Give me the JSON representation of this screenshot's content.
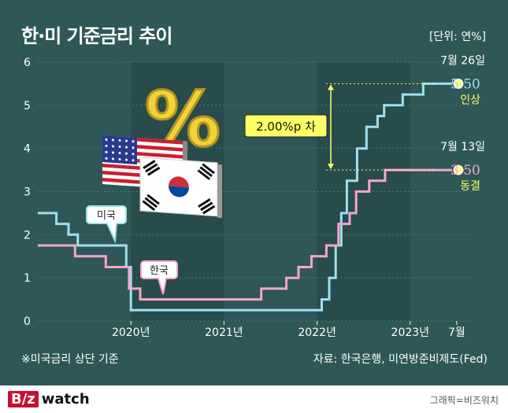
{
  "title": "한·미 기준금리 추이",
  "unit_note": "[단위: 연%]",
  "footnote": "※미국금리 상단 기준",
  "source": "자료: 한국은행, 미연방준비제도(Fed)",
  "logo": {
    "mark": "B/z",
    "text": "watch"
  },
  "credit": "그래픽=비즈워치",
  "colors": {
    "background": "#2f5757",
    "us": "#9fe0f0",
    "kr": "#f5a5cc",
    "highlight": "#ffff66",
    "band": "#284b4b"
  },
  "chart_data": {
    "type": "line",
    "step": true,
    "ylim": [
      0,
      6
    ],
    "yticks": [
      0,
      1,
      2,
      3,
      4,
      5,
      6
    ],
    "xlim": [
      2019.0,
      2023.67
    ],
    "xticks": [
      {
        "value": 2020.0,
        "label": "2020년"
      },
      {
        "value": 2021.0,
        "label": "2021년"
      },
      {
        "value": 2022.0,
        "label": "2022년"
      },
      {
        "value": 2023.0,
        "label": "2023년"
      },
      {
        "value": 2023.5,
        "label": "7월"
      }
    ],
    "year_bands": [
      [
        2020.0,
        2021.0
      ],
      [
        2022.0,
        2023.0
      ]
    ],
    "grid": true,
    "series": [
      {
        "name": "미국",
        "key": "us",
        "points": [
          [
            2019.0,
            2.5
          ],
          [
            2019.2,
            2.5
          ],
          [
            2019.2,
            2.25
          ],
          [
            2019.33,
            2.25
          ],
          [
            2019.33,
            2.0
          ],
          [
            2019.43,
            2.0
          ],
          [
            2019.43,
            1.75
          ],
          [
            2019.95,
            1.75
          ],
          [
            2019.95,
            1.25
          ],
          [
            2020.0,
            1.25
          ],
          [
            2020.0,
            0.25
          ],
          [
            2022.05,
            0.25
          ],
          [
            2022.05,
            0.5
          ],
          [
            2022.13,
            0.5
          ],
          [
            2022.13,
            1.0
          ],
          [
            2022.2,
            1.0
          ],
          [
            2022.2,
            1.75
          ],
          [
            2022.26,
            1.75
          ],
          [
            2022.26,
            2.5
          ],
          [
            2022.32,
            2.5
          ],
          [
            2022.32,
            3.25
          ],
          [
            2022.43,
            3.25
          ],
          [
            2022.43,
            4.0
          ],
          [
            2022.53,
            4.0
          ],
          [
            2022.53,
            4.5
          ],
          [
            2022.65,
            4.5
          ],
          [
            2022.65,
            4.75
          ],
          [
            2022.72,
            4.75
          ],
          [
            2022.72,
            5.0
          ],
          [
            2022.92,
            5.0
          ],
          [
            2022.92,
            5.25
          ],
          [
            2023.14,
            5.25
          ],
          [
            2023.14,
            5.5
          ],
          [
            2023.45,
            5.5
          ]
        ]
      },
      {
        "name": "한국",
        "key": "kr",
        "points": [
          [
            2019.0,
            1.75
          ],
          [
            2019.4,
            1.75
          ],
          [
            2019.4,
            1.5
          ],
          [
            2019.73,
            1.5
          ],
          [
            2019.73,
            1.25
          ],
          [
            2019.98,
            1.25
          ],
          [
            2019.98,
            0.75
          ],
          [
            2020.1,
            0.75
          ],
          [
            2020.1,
            0.5
          ],
          [
            2021.4,
            0.5
          ],
          [
            2021.4,
            0.75
          ],
          [
            2021.67,
            0.75
          ],
          [
            2021.67,
            1.0
          ],
          [
            2021.8,
            1.0
          ],
          [
            2021.8,
            1.25
          ],
          [
            2021.94,
            1.25
          ],
          [
            2021.94,
            1.5
          ],
          [
            2022.1,
            1.5
          ],
          [
            2022.1,
            1.75
          ],
          [
            2022.23,
            1.75
          ],
          [
            2022.23,
            2.25
          ],
          [
            2022.35,
            2.25
          ],
          [
            2022.35,
            2.5
          ],
          [
            2022.42,
            2.5
          ],
          [
            2022.42,
            3.0
          ],
          [
            2022.56,
            3.0
          ],
          [
            2022.56,
            3.25
          ],
          [
            2022.73,
            3.25
          ],
          [
            2022.73,
            3.5
          ],
          [
            2023.45,
            3.5
          ]
        ]
      }
    ],
    "end_labels": [
      {
        "key": "us",
        "date": "7월 26일",
        "value": "5.50",
        "change": "인상"
      },
      {
        "key": "kr",
        "date": "7월 13일",
        "value": "3.50",
        "change": "동결"
      }
    ],
    "annotation": {
      "text": "2.00%p 차",
      "from": 3.5,
      "to": 5.5
    },
    "callouts": [
      {
        "key": "us",
        "text": "미국"
      },
      {
        "key": "kr",
        "text": "한국"
      }
    ],
    "illustration": {
      "symbol": "%",
      "flags": [
        "us-flag",
        "kr-flag"
      ]
    }
  }
}
